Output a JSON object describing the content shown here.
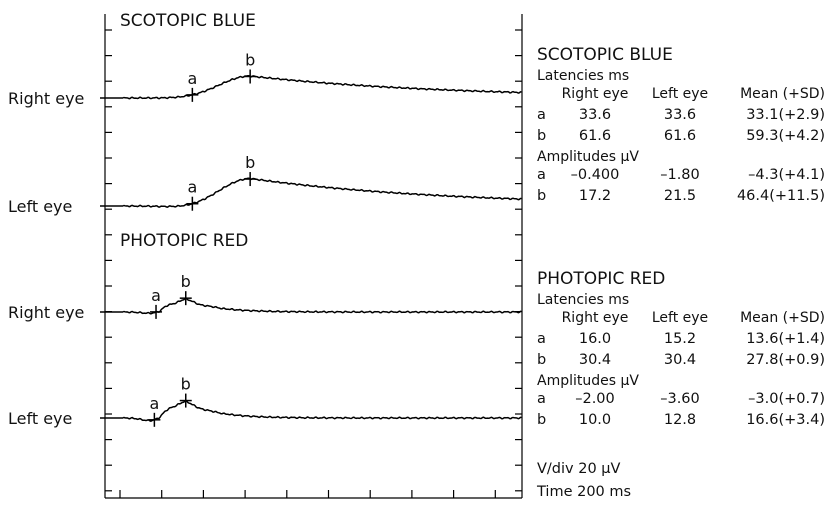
{
  "chart_data": {
    "type": "line",
    "traces": [
      {
        "section": "SCOTOPIC BLUE",
        "eye": "Right eye",
        "markers": [
          {
            "label": "a",
            "time_ms": 33.6
          },
          {
            "label": "b",
            "time_ms": 61.6
          }
        ],
        "shape": {
          "a_t": 33.6,
          "b_t": 61.6,
          "a_amp": -0.4,
          "b_amp": 17.2,
          "decay_ms": 95
        }
      },
      {
        "section": "SCOTOPIC BLUE",
        "eye": "Left eye",
        "markers": [
          {
            "label": "a",
            "time_ms": 33.6
          },
          {
            "label": "b",
            "time_ms": 61.6
          }
        ],
        "shape": {
          "a_t": 33.6,
          "b_t": 61.6,
          "a_amp": -1.8,
          "b_amp": 21.5,
          "decay_ms": 95
        }
      },
      {
        "section": "PHOTOPIC RED",
        "eye": "Right eye",
        "markers": [
          {
            "label": "a",
            "time_ms": 16.0
          },
          {
            "label": "b",
            "time_ms": 30.4
          }
        ],
        "shape": {
          "a_t": 16.0,
          "b_t": 30.4,
          "a_amp": -2.0,
          "b_amp": 10.0,
          "decay_ms": 14
        }
      },
      {
        "section": "PHOTOPIC RED",
        "eye": "Left eye",
        "markers": [
          {
            "label": "a",
            "time_ms": 15.2
          },
          {
            "label": "b",
            "time_ms": 30.4
          }
        ],
        "shape": {
          "a_t": 15.2,
          "b_t": 30.4,
          "a_amp": -3.6,
          "b_amp": 12.8,
          "decay_ms": 14
        }
      }
    ],
    "x_range_ms": [
      0,
      200
    ],
    "tables": [
      {
        "title": "SCOTOPIC BLUE",
        "columns": [
          "Right eye",
          "Left eye",
          "Mean (+SD)"
        ],
        "groups": [
          {
            "heading": "Latencies ms",
            "rows": [
              {
                "label": "a",
                "values": [
                  "33.6",
                  "33.6",
                  "33.1(+2.9)"
                ]
              },
              {
                "label": "b",
                "values": [
                  "61.6",
                  "61.6",
                  "59.3(+4.2)"
                ]
              }
            ]
          },
          {
            "heading": "Amplitudes µV",
            "rows": [
              {
                "label": "a",
                "values": [
                  "–0.400",
                  "–1.80",
                  "–4.3(+4.1)"
                ]
              },
              {
                "label": "b",
                "values": [
                  "17.2",
                  "21.5",
                  "46.4(+11.5)"
                ]
              }
            ]
          }
        ]
      },
      {
        "title": "PHOTOPIC RED",
        "columns": [
          "Right eye",
          "Left eye",
          "Mean (+SD)"
        ],
        "groups": [
          {
            "heading": "Latencies ms",
            "rows": [
              {
                "label": "a",
                "values": [
                  "16.0",
                  "15.2",
                  "13.6(+1.4)"
                ]
              },
              {
                "label": "b",
                "values": [
                  "30.4",
                  "30.4",
                  "27.8(+0.9)"
                ]
              }
            ]
          },
          {
            "heading": "Amplitudes µV",
            "rows": [
              {
                "label": "a",
                "values": [
                  "–2.00",
                  "–3.60",
                  "–3.0(+0.7)"
                ]
              },
              {
                "label": "b",
                "values": [
                  "10.0",
                  "12.8",
                  "16.6(+3.4)"
                ]
              }
            ]
          }
        ]
      }
    ],
    "scale": {
      "vdiv": "V/div   20 µV",
      "time": "Time   200 ms"
    }
  }
}
